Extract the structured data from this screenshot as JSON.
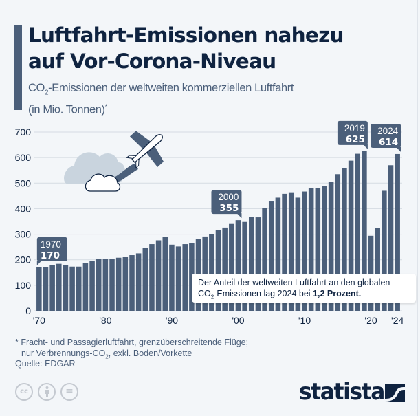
{
  "header": {
    "title_line1": "Luftfahrt-Emissionen nahezu",
    "title_line2": "auf Vor-Corona-Niveau",
    "subtitle_pre": "CO",
    "subtitle_sub": "2",
    "subtitle_rest": "-Emissionen der weltweiten kommerziellen Luftfahrt",
    "subtitle_line2": "(in Mio. Tonnen)",
    "subtitle_sup": "*"
  },
  "annotation": {
    "line1": "Der Anteil der weltweiten Luftfahrt an den globalen",
    "line2_pre": "CO",
    "line2_sub": "2",
    "line2_mid": "-Emissionen lag 2024 bei ",
    "line2_bold": "1,2 Prozent."
  },
  "footnote": {
    "line1": "* Fracht- und Passagierluftfahrt, grenzüberschreitende Flüge;",
    "line2_pre": "nur Verbrennungs-CO",
    "line2_sub": "2",
    "line2_rest": ", exkl. Boden/Vorkette",
    "source": "Quelle: EDGAR"
  },
  "license_icons": [
    "cc-icon",
    "by-icon",
    "nd-icon"
  ],
  "license_labels": {
    "cc": "cc",
    "nd": "="
  },
  "brand": {
    "name": "statista"
  },
  "colors": {
    "bar": "#4b5f7a",
    "title": "#0f2340",
    "grid": "#d5dbe2",
    "background": "#f3f6f9",
    "text": "#4b5f7a"
  },
  "chart_data": {
    "type": "bar",
    "title": "Luftfahrt-Emissionen nahezu auf Vor-Corona-Niveau",
    "ylabel": "CO2-Emissionen (in Mio. Tonnen)",
    "ylim": [
      0,
      700
    ],
    "yticks": [
      0,
      100,
      200,
      300,
      400,
      500,
      600,
      700
    ],
    "xtick_labels": [
      {
        "year": 1970,
        "label": "'70"
      },
      {
        "year": 1980,
        "label": "'80"
      },
      {
        "year": 1990,
        "label": "'90"
      },
      {
        "year": 2000,
        "label": "'00"
      },
      {
        "year": 2010,
        "label": "'10"
      },
      {
        "year": 2020,
        "label": "'20"
      },
      {
        "year": 2024,
        "label": "'24"
      }
    ],
    "grid": true,
    "categories": [
      1970,
      1971,
      1972,
      1973,
      1974,
      1975,
      1976,
      1977,
      1978,
      1979,
      1980,
      1981,
      1982,
      1983,
      1984,
      1985,
      1986,
      1987,
      1988,
      1989,
      1990,
      1991,
      1992,
      1993,
      1994,
      1995,
      1996,
      1997,
      1998,
      1999,
      2000,
      2001,
      2002,
      2003,
      2004,
      2005,
      2006,
      2007,
      2008,
      2009,
      2010,
      2011,
      2012,
      2013,
      2014,
      2015,
      2016,
      2017,
      2018,
      2019,
      2020,
      2021,
      2022,
      2023,
      2024
    ],
    "values": [
      170,
      170,
      178,
      184,
      179,
      173,
      173,
      188,
      196,
      204,
      202,
      202,
      208,
      210,
      218,
      225,
      246,
      261,
      276,
      290,
      259,
      252,
      261,
      266,
      280,
      291,
      301,
      315,
      326,
      340,
      355,
      348,
      367,
      366,
      402,
      428,
      443,
      458,
      464,
      443,
      467,
      480,
      480,
      489,
      505,
      535,
      558,
      588,
      615,
      625,
      294,
      324,
      470,
      570,
      614
    ],
    "callouts": [
      {
        "year": "1970",
        "value": "170"
      },
      {
        "year": "2000",
        "value": "355"
      },
      {
        "year": "2019",
        "value": "625"
      },
      {
        "year": "2024",
        "value": "614"
      }
    ]
  }
}
